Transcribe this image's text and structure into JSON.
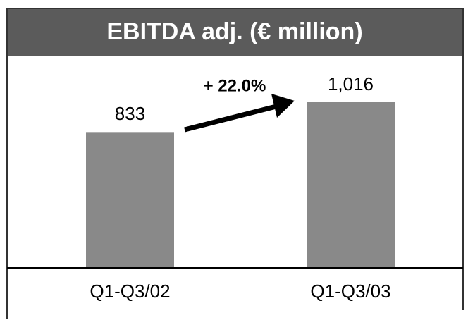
{
  "chart_data": {
    "type": "bar",
    "title": "EBITDA adj. (€ million)",
    "categories": [
      "Q1-Q3/02",
      "Q1-Q3/03"
    ],
    "values": [
      833,
      1016
    ],
    "value_labels": [
      "833",
      "1,016"
    ],
    "color": "#898989",
    "annotation": "+ 22.0%"
  }
}
